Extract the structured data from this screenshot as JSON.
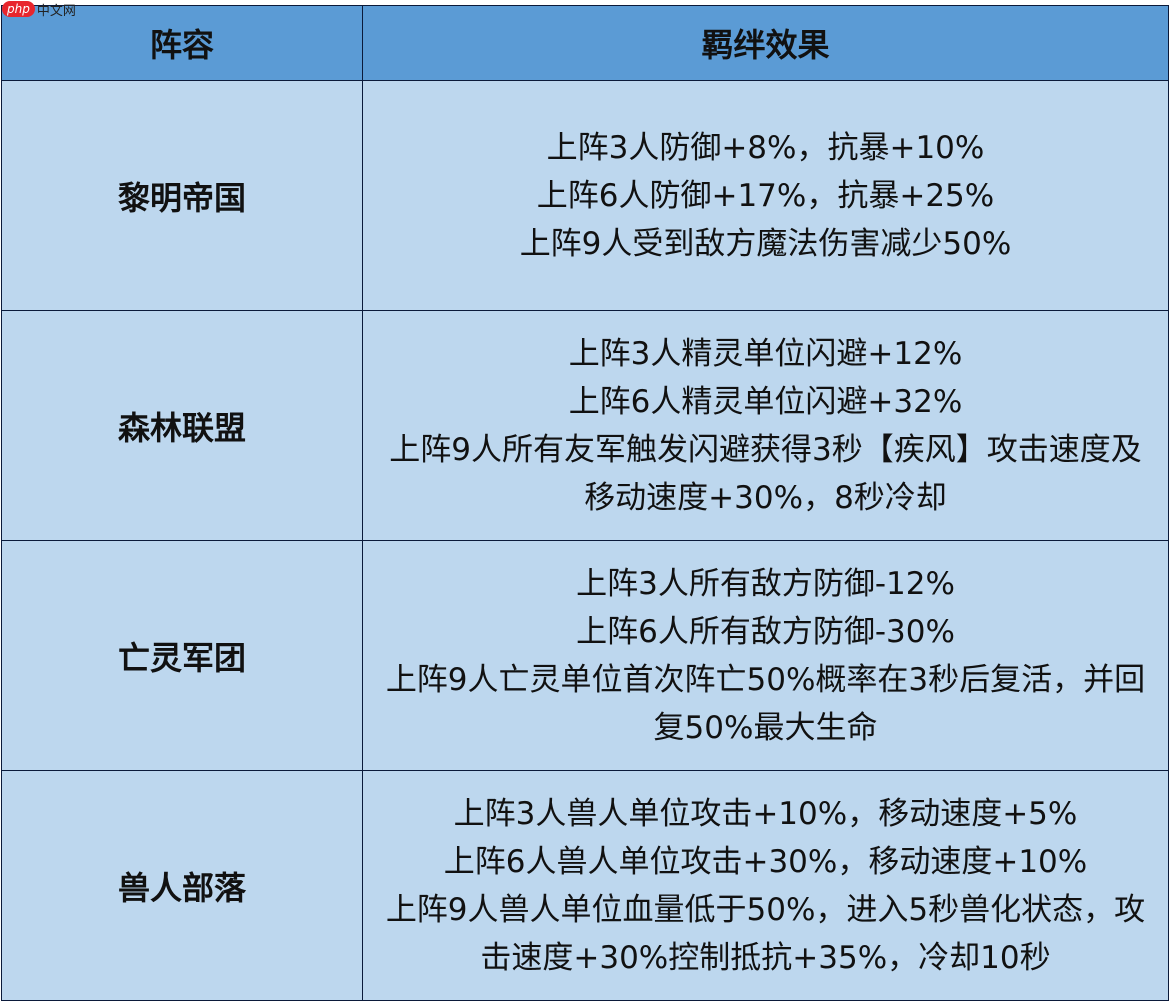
{
  "watermark": "php中文网",
  "headers": [
    "阵容",
    "羁绊效果"
  ],
  "rows": [
    {
      "name": "黎明帝国",
      "effects": [
        "上阵3人防御+8%，抗暴+10%",
        "上阵6人防御+17%，抗暴+25%",
        "上阵9人受到敌方魔法伤害减少50%"
      ]
    },
    {
      "name": "森林联盟",
      "effects": [
        "上阵3人精灵单位闪避+12%",
        "上阵6人精灵单位闪避+32%",
        "上阵9人所有友军触发闪避获得3秒【疾风】攻击速度及移动速度+30%，8秒冷却"
      ]
    },
    {
      "name": "亡灵军团",
      "effects": [
        "上阵3人所有敌方防御-12%",
        "上阵6人所有敌方防御-30%",
        "上阵9人亡灵单位首次阵亡50%概率在3秒后复活，并回复50%最大生命"
      ]
    },
    {
      "name": "兽人部落",
      "effects": [
        "上阵3人兽人单位攻击+10%，移动速度+5%",
        "上阵6人兽人单位攻击+30%，移动速度+10%",
        "上阵9人兽人单位血量低于50%，进入5秒兽化状态，攻击速度+30%控制抵抗+35%，冷却10秒"
      ]
    }
  ],
  "colors": {
    "header": "#5b9bd5",
    "cell": "#bdd7ee",
    "border": "#0b1a3a"
  }
}
